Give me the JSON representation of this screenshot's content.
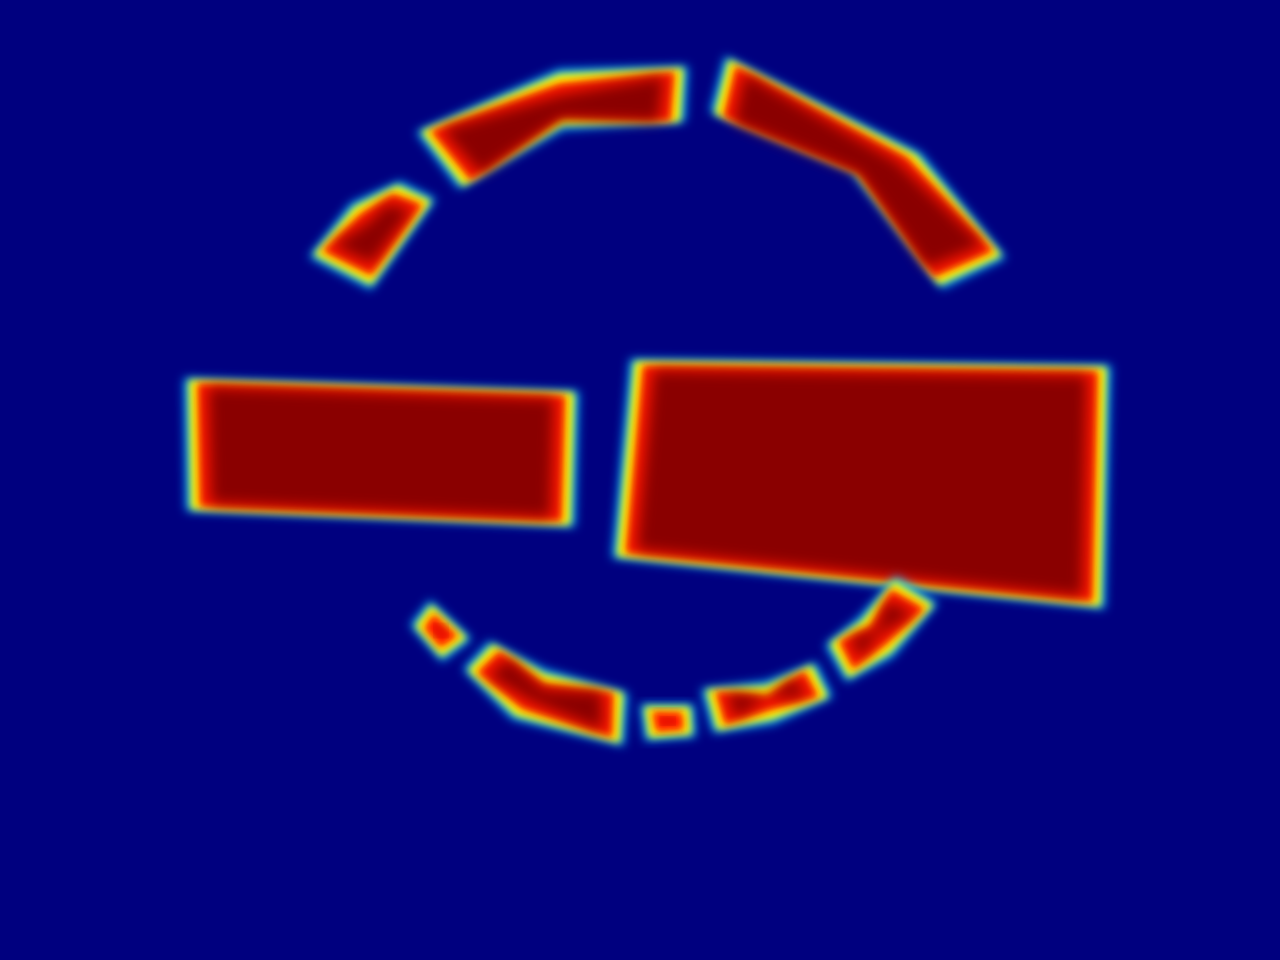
{
  "colormap": {
    "name": "jet",
    "background": "#00007f",
    "stops": [
      {
        "offset": 0.0,
        "color": "#00007f"
      },
      {
        "offset": 0.12,
        "color": "#0000ff"
      },
      {
        "offset": 0.34,
        "color": "#00ffff"
      },
      {
        "offset": 0.5,
        "color": "#7fff7f"
      },
      {
        "offset": 0.62,
        "color": "#ffff00"
      },
      {
        "offset": 0.82,
        "color": "#ff0000"
      },
      {
        "offset": 1.0,
        "color": "#7f0000"
      }
    ]
  },
  "content": {
    "description_visible_text": "",
    "shape_count": 14
  }
}
